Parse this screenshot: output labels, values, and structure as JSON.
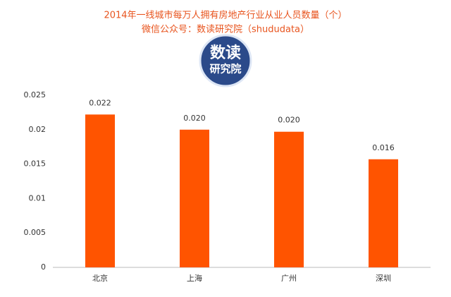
{
  "chart_data": {
    "type": "bar",
    "title": "2014年一线城市每万人拥有房地产行业从业人员数量（个）",
    "subtitle": "微信公众号：数读研究院（shududata）",
    "categories": [
      "北京",
      "上海",
      "广州",
      "深圳"
    ],
    "values": [
      0.0222,
      0.02,
      0.0197,
      0.0157
    ],
    "value_labels": [
      "0.022",
      "0.020",
      "0.020",
      "0.016"
    ],
    "color": "#ff5400",
    "ylim": [
      0,
      0.025
    ],
    "yticks": [
      0,
      0.005,
      0.01,
      0.015,
      0.02,
      0.025
    ],
    "grid": false
  },
  "logo": {
    "line1": "数读",
    "line2": "研究院"
  }
}
